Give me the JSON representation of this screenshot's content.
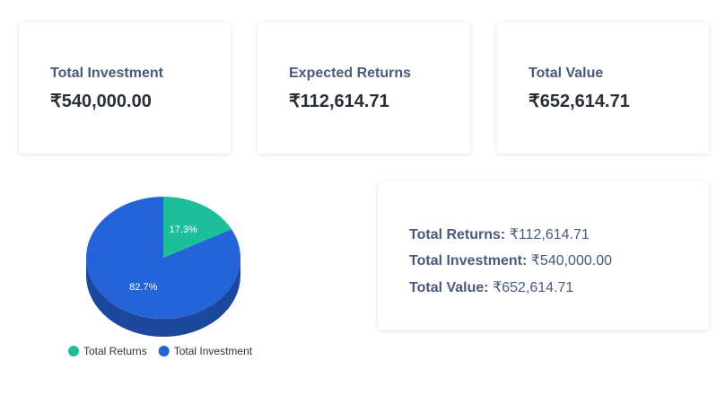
{
  "cards": {
    "investment": {
      "label": "Total Investment",
      "value": "₹540,000.00"
    },
    "returns": {
      "label": "Expected Returns",
      "value": "₹112,614.71"
    },
    "total": {
      "label": "Total Value",
      "value": "₹652,614.71"
    }
  },
  "summary": {
    "returns": {
      "label": "Total Returns:",
      "value": "₹112,614.71"
    },
    "investment": {
      "label": "Total Investment:",
      "value": "₹540,000.00"
    },
    "total": {
      "label": "Total Value:",
      "value": "₹652,614.71"
    }
  },
  "chart_data": {
    "type": "pie",
    "categories": [
      "Total Returns",
      "Total Investment"
    ],
    "values": [
      17.3,
      82.7
    ],
    "slice_labels": [
      "17.3%",
      "82.7%"
    ],
    "colors": [
      "#1dbf9a",
      "#2563d8"
    ],
    "legend_position": "bottom"
  }
}
